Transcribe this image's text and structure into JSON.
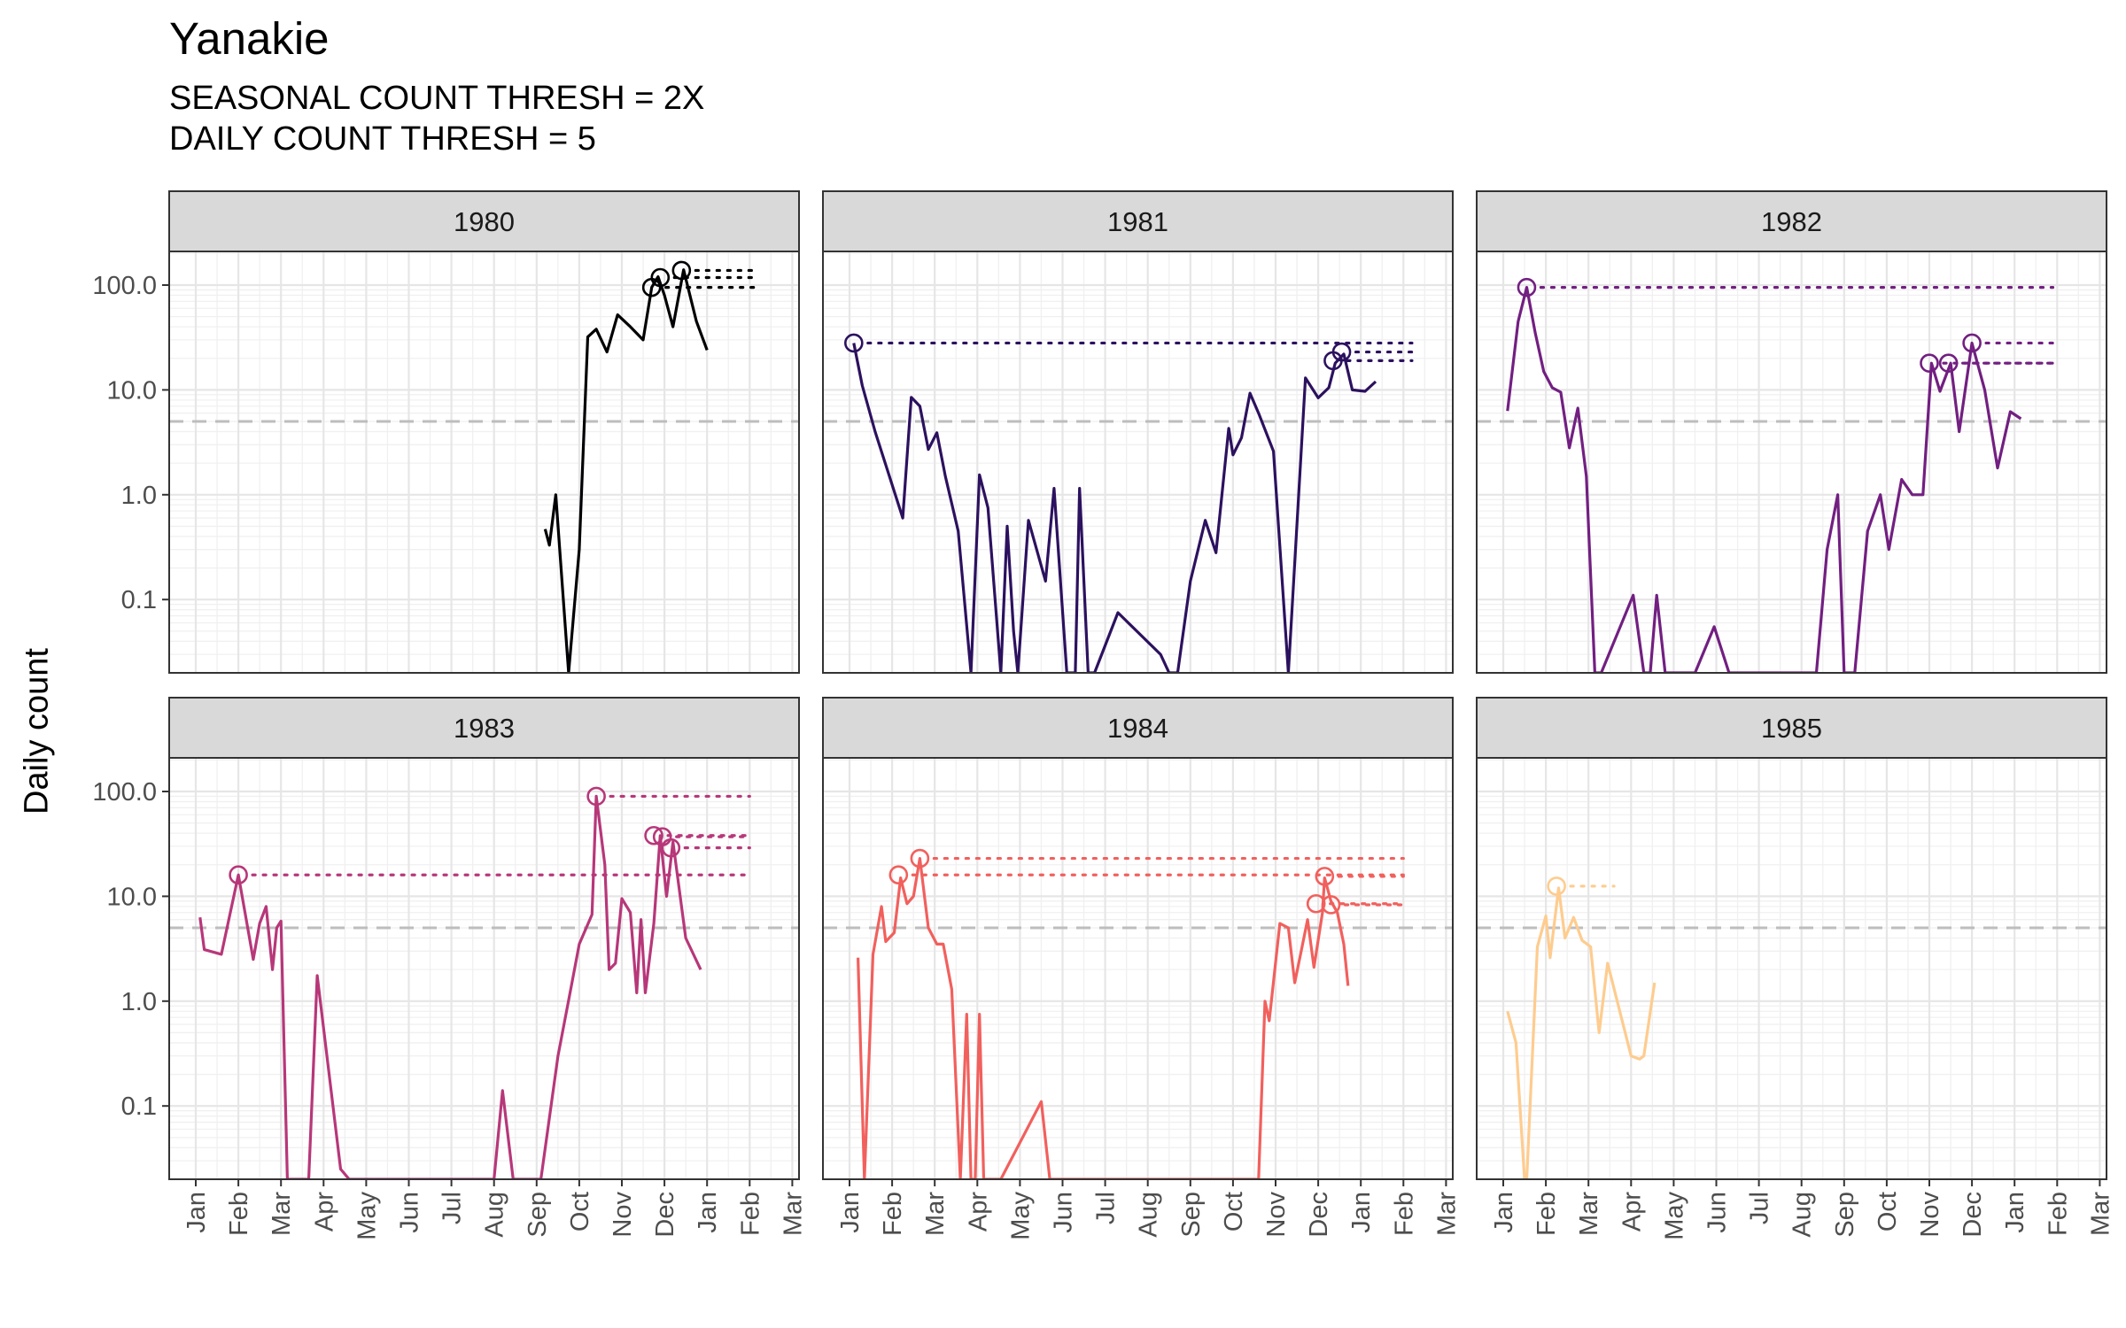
{
  "title": "Yanakie",
  "subtitle": [
    "SEASONAL COUNT THRESH = 2X",
    "DAILY COUNT THRESH = 5"
  ],
  "chart_data": {
    "type": "line",
    "title": "Yanakie",
    "subtitle": "SEASONAL COUNT THRESH = 2X / DAILY COUNT THRESH = 5",
    "xlabel": "",
    "ylabel": "Daily count",
    "yscale": "log10",
    "ylim": [
      0.02,
      220
    ],
    "yticks": [
      0.1,
      1.0,
      10.0,
      100.0
    ],
    "ytick_labels": [
      "0.1",
      "1.0",
      "10.0",
      "100.0"
    ],
    "x_range_months": [
      0,
      14.3
    ],
    "xtick_labels": [
      "Jan",
      "Feb",
      "Mar",
      "Apr",
      "May",
      "Jun",
      "Jul",
      "Aug",
      "Sep",
      "Oct",
      "Nov",
      "Dec",
      "Jan",
      "Feb",
      "Mar"
    ],
    "threshold": 5,
    "grid": true,
    "panels": [
      {
        "label": "1980",
        "color": "#000004",
        "series": [
          [
            8.2,
            0.47
          ],
          [
            8.3,
            0.33
          ],
          [
            8.45,
            1.0
          ],
          [
            8.75,
            0.02
          ],
          [
            9.0,
            0.3
          ],
          [
            9.2,
            32
          ],
          [
            9.4,
            38
          ],
          [
            9.65,
            23
          ],
          [
            9.9,
            52
          ],
          [
            10.2,
            40
          ],
          [
            10.5,
            30
          ],
          [
            10.7,
            95
          ],
          [
            10.85,
            120
          ],
          [
            11.0,
            80
          ],
          [
            11.2,
            40
          ],
          [
            11.45,
            140
          ],
          [
            11.75,
            45
          ],
          [
            12.0,
            24
          ]
        ],
        "peaks": [
          [
            10.7,
            95
          ],
          [
            10.9,
            118
          ],
          [
            11.4,
            138
          ]
        ],
        "peak_line_end": 13.2
      },
      {
        "label": "1981",
        "color": "#2C115F",
        "series": [
          [
            0.1,
            28
          ],
          [
            0.3,
            11
          ],
          [
            0.6,
            4
          ],
          [
            1.25,
            0.6
          ],
          [
            1.45,
            8.5
          ],
          [
            1.65,
            7
          ],
          [
            1.85,
            2.7
          ],
          [
            2.05,
            3.9
          ],
          [
            2.25,
            1.5
          ],
          [
            2.55,
            0.45
          ],
          [
            2.85,
            0.02
          ],
          [
            3.05,
            1.55
          ],
          [
            3.25,
            0.75
          ],
          [
            3.55,
            0.02
          ],
          [
            3.7,
            0.5
          ],
          [
            3.85,
            0.05
          ],
          [
            3.95,
            0.02
          ],
          [
            4.2,
            0.57
          ],
          [
            4.6,
            0.15
          ],
          [
            4.8,
            1.15
          ],
          [
            5.1,
            0.02
          ],
          [
            5.3,
            0.02
          ],
          [
            5.4,
            1.15
          ],
          [
            5.6,
            0.02
          ],
          [
            5.75,
            0.02
          ],
          [
            6.3,
            0.075
          ],
          [
            7.3,
            0.03
          ],
          [
            7.5,
            0.02
          ],
          [
            7.7,
            0.02
          ],
          [
            8.0,
            0.15
          ],
          [
            8.35,
            0.57
          ],
          [
            8.6,
            0.28
          ],
          [
            8.9,
            4.3
          ],
          [
            9.0,
            2.4
          ],
          [
            9.2,
            3.5
          ],
          [
            9.4,
            9.3
          ],
          [
            9.6,
            6
          ],
          [
            9.95,
            2.6
          ],
          [
            10.3,
            0.02
          ],
          [
            10.7,
            13
          ],
          [
            11.0,
            8.4
          ],
          [
            11.25,
            10.5
          ],
          [
            11.4,
            18
          ],
          [
            11.6,
            22
          ],
          [
            11.8,
            10
          ],
          [
            12.1,
            9.7
          ],
          [
            12.35,
            12
          ]
        ],
        "peaks": [
          [
            0.1,
            28
          ],
          [
            11.35,
            19
          ],
          [
            11.55,
            23
          ]
        ],
        "peak_line_end": 13.2
      },
      {
        "label": "1982",
        "color": "#721F81",
        "series": [
          [
            0.1,
            6.3
          ],
          [
            0.35,
            45
          ],
          [
            0.55,
            95
          ],
          [
            0.75,
            35
          ],
          [
            0.95,
            15
          ],
          [
            1.15,
            10.5
          ],
          [
            1.35,
            9.5
          ],
          [
            1.55,
            2.8
          ],
          [
            1.75,
            6.7
          ],
          [
            1.95,
            1.5
          ],
          [
            2.15,
            0.02
          ],
          [
            2.3,
            0.02
          ],
          [
            3.05,
            0.11
          ],
          [
            3.3,
            0.02
          ],
          [
            3.45,
            0.02
          ],
          [
            3.6,
            0.11
          ],
          [
            3.8,
            0.02
          ],
          [
            4.5,
            0.02
          ],
          [
            4.95,
            0.055
          ],
          [
            5.3,
            0.02
          ],
          [
            7.35,
            0.02
          ],
          [
            7.6,
            0.3
          ],
          [
            7.85,
            1.0
          ],
          [
            8.0,
            0.02
          ],
          [
            8.25,
            0.02
          ],
          [
            8.55,
            0.45
          ],
          [
            8.85,
            1.0
          ],
          [
            9.05,
            0.3
          ],
          [
            9.35,
            1.4
          ],
          [
            9.6,
            1.0
          ],
          [
            9.85,
            1.0
          ],
          [
            10.05,
            18
          ],
          [
            10.25,
            9.7
          ],
          [
            10.5,
            18
          ],
          [
            10.7,
            4
          ],
          [
            11.0,
            28
          ],
          [
            11.3,
            10
          ],
          [
            11.6,
            1.8
          ],
          [
            11.9,
            6.2
          ],
          [
            12.15,
            5.3
          ]
        ],
        "peaks": [
          [
            0.55,
            95
          ],
          [
            10.0,
            18
          ],
          [
            10.45,
            18
          ],
          [
            11.0,
            28
          ]
        ],
        "peak_line_end": 12.9
      },
      {
        "label": "1983",
        "color": "#B73779",
        "series": [
          [
            0.1,
            6.3
          ],
          [
            0.2,
            3.1
          ],
          [
            0.6,
            2.8
          ],
          [
            1.0,
            16
          ],
          [
            1.35,
            2.5
          ],
          [
            1.5,
            5.5
          ],
          [
            1.65,
            8
          ],
          [
            1.8,
            2
          ],
          [
            1.9,
            5
          ],
          [
            2.0,
            5.8
          ],
          [
            2.15,
            0.02
          ],
          [
            2.65,
            0.02
          ],
          [
            2.85,
            1.75
          ],
          [
            3.4,
            0.025
          ],
          [
            3.6,
            0.02
          ],
          [
            7.0,
            0.02
          ],
          [
            7.2,
            0.14
          ],
          [
            7.45,
            0.02
          ],
          [
            8.1,
            0.02
          ],
          [
            8.5,
            0.3
          ],
          [
            8.8,
            1.3
          ],
          [
            9.0,
            3.5
          ],
          [
            9.3,
            6.7
          ],
          [
            9.4,
            90
          ],
          [
            9.6,
            20
          ],
          [
            9.7,
            2
          ],
          [
            9.85,
            2.3
          ],
          [
            10.0,
            9.5
          ],
          [
            10.2,
            7
          ],
          [
            10.35,
            1.2
          ],
          [
            10.45,
            6
          ],
          [
            10.55,
            1.2
          ],
          [
            10.75,
            5.5
          ],
          [
            10.9,
            38
          ],
          [
            11.05,
            10
          ],
          [
            11.2,
            33
          ],
          [
            11.5,
            4
          ],
          [
            11.85,
            2
          ]
        ],
        "peaks": [
          [
            1.0,
            16
          ],
          [
            9.4,
            90
          ],
          [
            10.75,
            38
          ],
          [
            10.95,
            37
          ],
          [
            11.15,
            29
          ]
        ],
        "peak_line_end": 13.0
      },
      {
        "label": "1984",
        "color": "#F1605D",
        "series": [
          [
            0.2,
            2.6
          ],
          [
            0.35,
            0.02
          ],
          [
            0.55,
            2.8
          ],
          [
            0.75,
            8
          ],
          [
            0.85,
            3.7
          ],
          [
            1.05,
            4.5
          ],
          [
            1.2,
            15
          ],
          [
            1.35,
            8.5
          ],
          [
            1.5,
            10
          ],
          [
            1.65,
            23
          ],
          [
            1.85,
            5
          ],
          [
            2.05,
            3.5
          ],
          [
            2.2,
            3.5
          ],
          [
            2.4,
            1.3
          ],
          [
            2.6,
            0.02
          ],
          [
            2.75,
            0.75
          ],
          [
            2.85,
            0.02
          ],
          [
            2.95,
            0.02
          ],
          [
            3.05,
            0.75
          ],
          [
            3.15,
            0.02
          ],
          [
            3.3,
            0.02
          ],
          [
            3.55,
            0.02
          ],
          [
            4.5,
            0.11
          ],
          [
            4.7,
            0.02
          ],
          [
            9.6,
            0.02
          ],
          [
            9.75,
            1.0
          ],
          [
            9.85,
            0.65
          ],
          [
            10.1,
            5.5
          ],
          [
            10.3,
            5
          ],
          [
            10.45,
            1.5
          ],
          [
            10.6,
            3
          ],
          [
            10.75,
            6
          ],
          [
            10.9,
            2.1
          ],
          [
            11.1,
            7
          ],
          [
            11.15,
            15
          ],
          [
            11.3,
            9
          ],
          [
            11.45,
            7
          ],
          [
            11.6,
            3.5
          ],
          [
            11.7,
            1.4
          ]
        ],
        "peaks": [
          [
            1.15,
            16
          ],
          [
            1.65,
            23
          ],
          [
            10.95,
            8.5
          ],
          [
            11.15,
            15.5
          ],
          [
            11.3,
            8.3
          ]
        ],
        "peak_line_end": 13.0
      },
      {
        "label": "1985",
        "color": "#FECC8F",
        "series": [
          [
            0.1,
            0.8
          ],
          [
            0.3,
            0.4
          ],
          [
            0.5,
            0.02
          ],
          [
            0.55,
            0.02
          ],
          [
            0.8,
            3.3
          ],
          [
            1.0,
            6.5
          ],
          [
            1.1,
            2.6
          ],
          [
            1.3,
            12
          ],
          [
            1.45,
            4
          ],
          [
            1.65,
            6.3
          ],
          [
            1.85,
            3.8
          ],
          [
            2.05,
            3.3
          ],
          [
            2.25,
            0.5
          ],
          [
            2.45,
            2.3
          ],
          [
            3.0,
            0.3
          ],
          [
            3.2,
            0.28
          ],
          [
            3.3,
            0.3
          ],
          [
            3.55,
            1.5
          ]
        ],
        "peaks": [
          [
            1.25,
            12.5
          ]
        ],
        "peak_line_end": 2.6
      }
    ]
  }
}
